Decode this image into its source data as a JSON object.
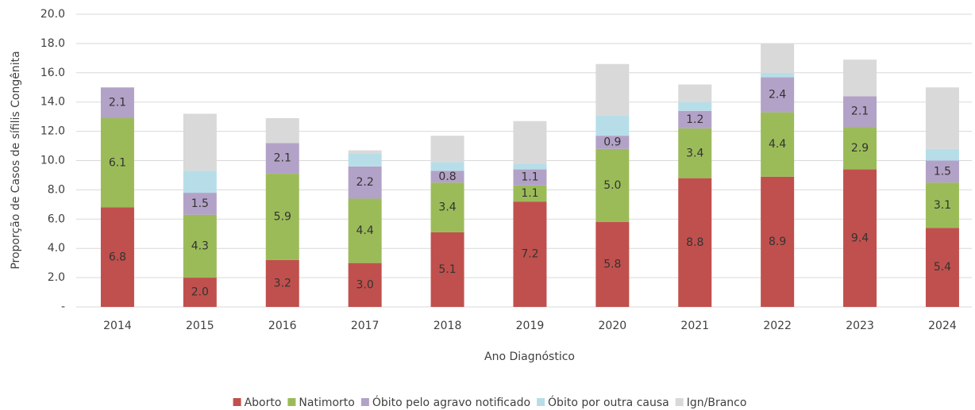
{
  "chart_data": {
    "type": "bar",
    "stacked": true,
    "y_label": "Proporção de Casos de sífilis Congênita",
    "x_label": "Ano Diagnóstico",
    "categories": [
      "2014",
      "2015",
      "2016",
      "2017",
      "2018",
      "2019",
      "2020",
      "2021",
      "2022",
      "2023",
      "2024"
    ],
    "series": [
      {
        "name": "Aborto",
        "color": "#c0504d",
        "values": [
          6.8,
          2.0,
          3.2,
          3.0,
          5.1,
          7.2,
          5.8,
          8.8,
          8.9,
          9.4,
          5.4
        ],
        "value_labels": [
          "6.8",
          "2.0",
          "3.2",
          "3.0",
          "5.1",
          "7.2",
          "5.8",
          "8.8",
          "8.9",
          "9.4",
          "5.4"
        ]
      },
      {
        "name": "Natimorto",
        "color": "#9bbb59",
        "values": [
          6.1,
          4.3,
          5.9,
          4.4,
          3.4,
          1.1,
          5.0,
          3.4,
          4.4,
          2.9,
          3.1
        ],
        "value_labels": [
          "6.1",
          "4.3",
          "5.9",
          "4.4",
          "3.4",
          "1.1",
          "5.0",
          "3.4",
          "4.4",
          "2.9",
          "3.1"
        ]
      },
      {
        "name": "Óbito pelo agravo notificado",
        "color": "#b3a2c7",
        "values": [
          2.1,
          1.5,
          2.1,
          2.2,
          0.8,
          1.1,
          0.9,
          1.2,
          2.4,
          2.1,
          1.5
        ],
        "value_labels": [
          "2.1",
          "1.5",
          "2.1",
          "2.2",
          "0.8",
          "1.1",
          "0.9",
          "1.2",
          "2.4",
          "2.1",
          "1.5"
        ]
      },
      {
        "name": "Óbito por outra causa",
        "color": "#b7dee8",
        "values": [
          0,
          1.5,
          0,
          0.9,
          0.6,
          0.4,
          1.4,
          0.6,
          0.3,
          0,
          0.8
        ]
      },
      {
        "name": "Ign/Branco",
        "color": "#d9d9d9",
        "values": [
          0,
          3.9,
          1.7,
          0.2,
          1.8,
          2.9,
          3.5,
          1.2,
          2.0,
          2.5,
          4.2
        ]
      }
    ],
    "ylim": [
      0,
      20
    ],
    "yticks": [
      {
        "value": 0,
        "label": "-"
      },
      {
        "value": 2,
        "label": "2.0"
      },
      {
        "value": 4,
        "label": "4.0"
      },
      {
        "value": 6,
        "label": "6.0"
      },
      {
        "value": 8,
        "label": "8.0"
      },
      {
        "value": 10,
        "label": "10.0"
      },
      {
        "value": 12,
        "label": "12.0"
      },
      {
        "value": 14,
        "label": "14.0"
      },
      {
        "value": 16,
        "label": "16.0"
      },
      {
        "value": 18,
        "label": "18.0"
      },
      {
        "value": 20,
        "label": "20.0"
      }
    ],
    "grid": true,
    "legend": "bottom"
  }
}
